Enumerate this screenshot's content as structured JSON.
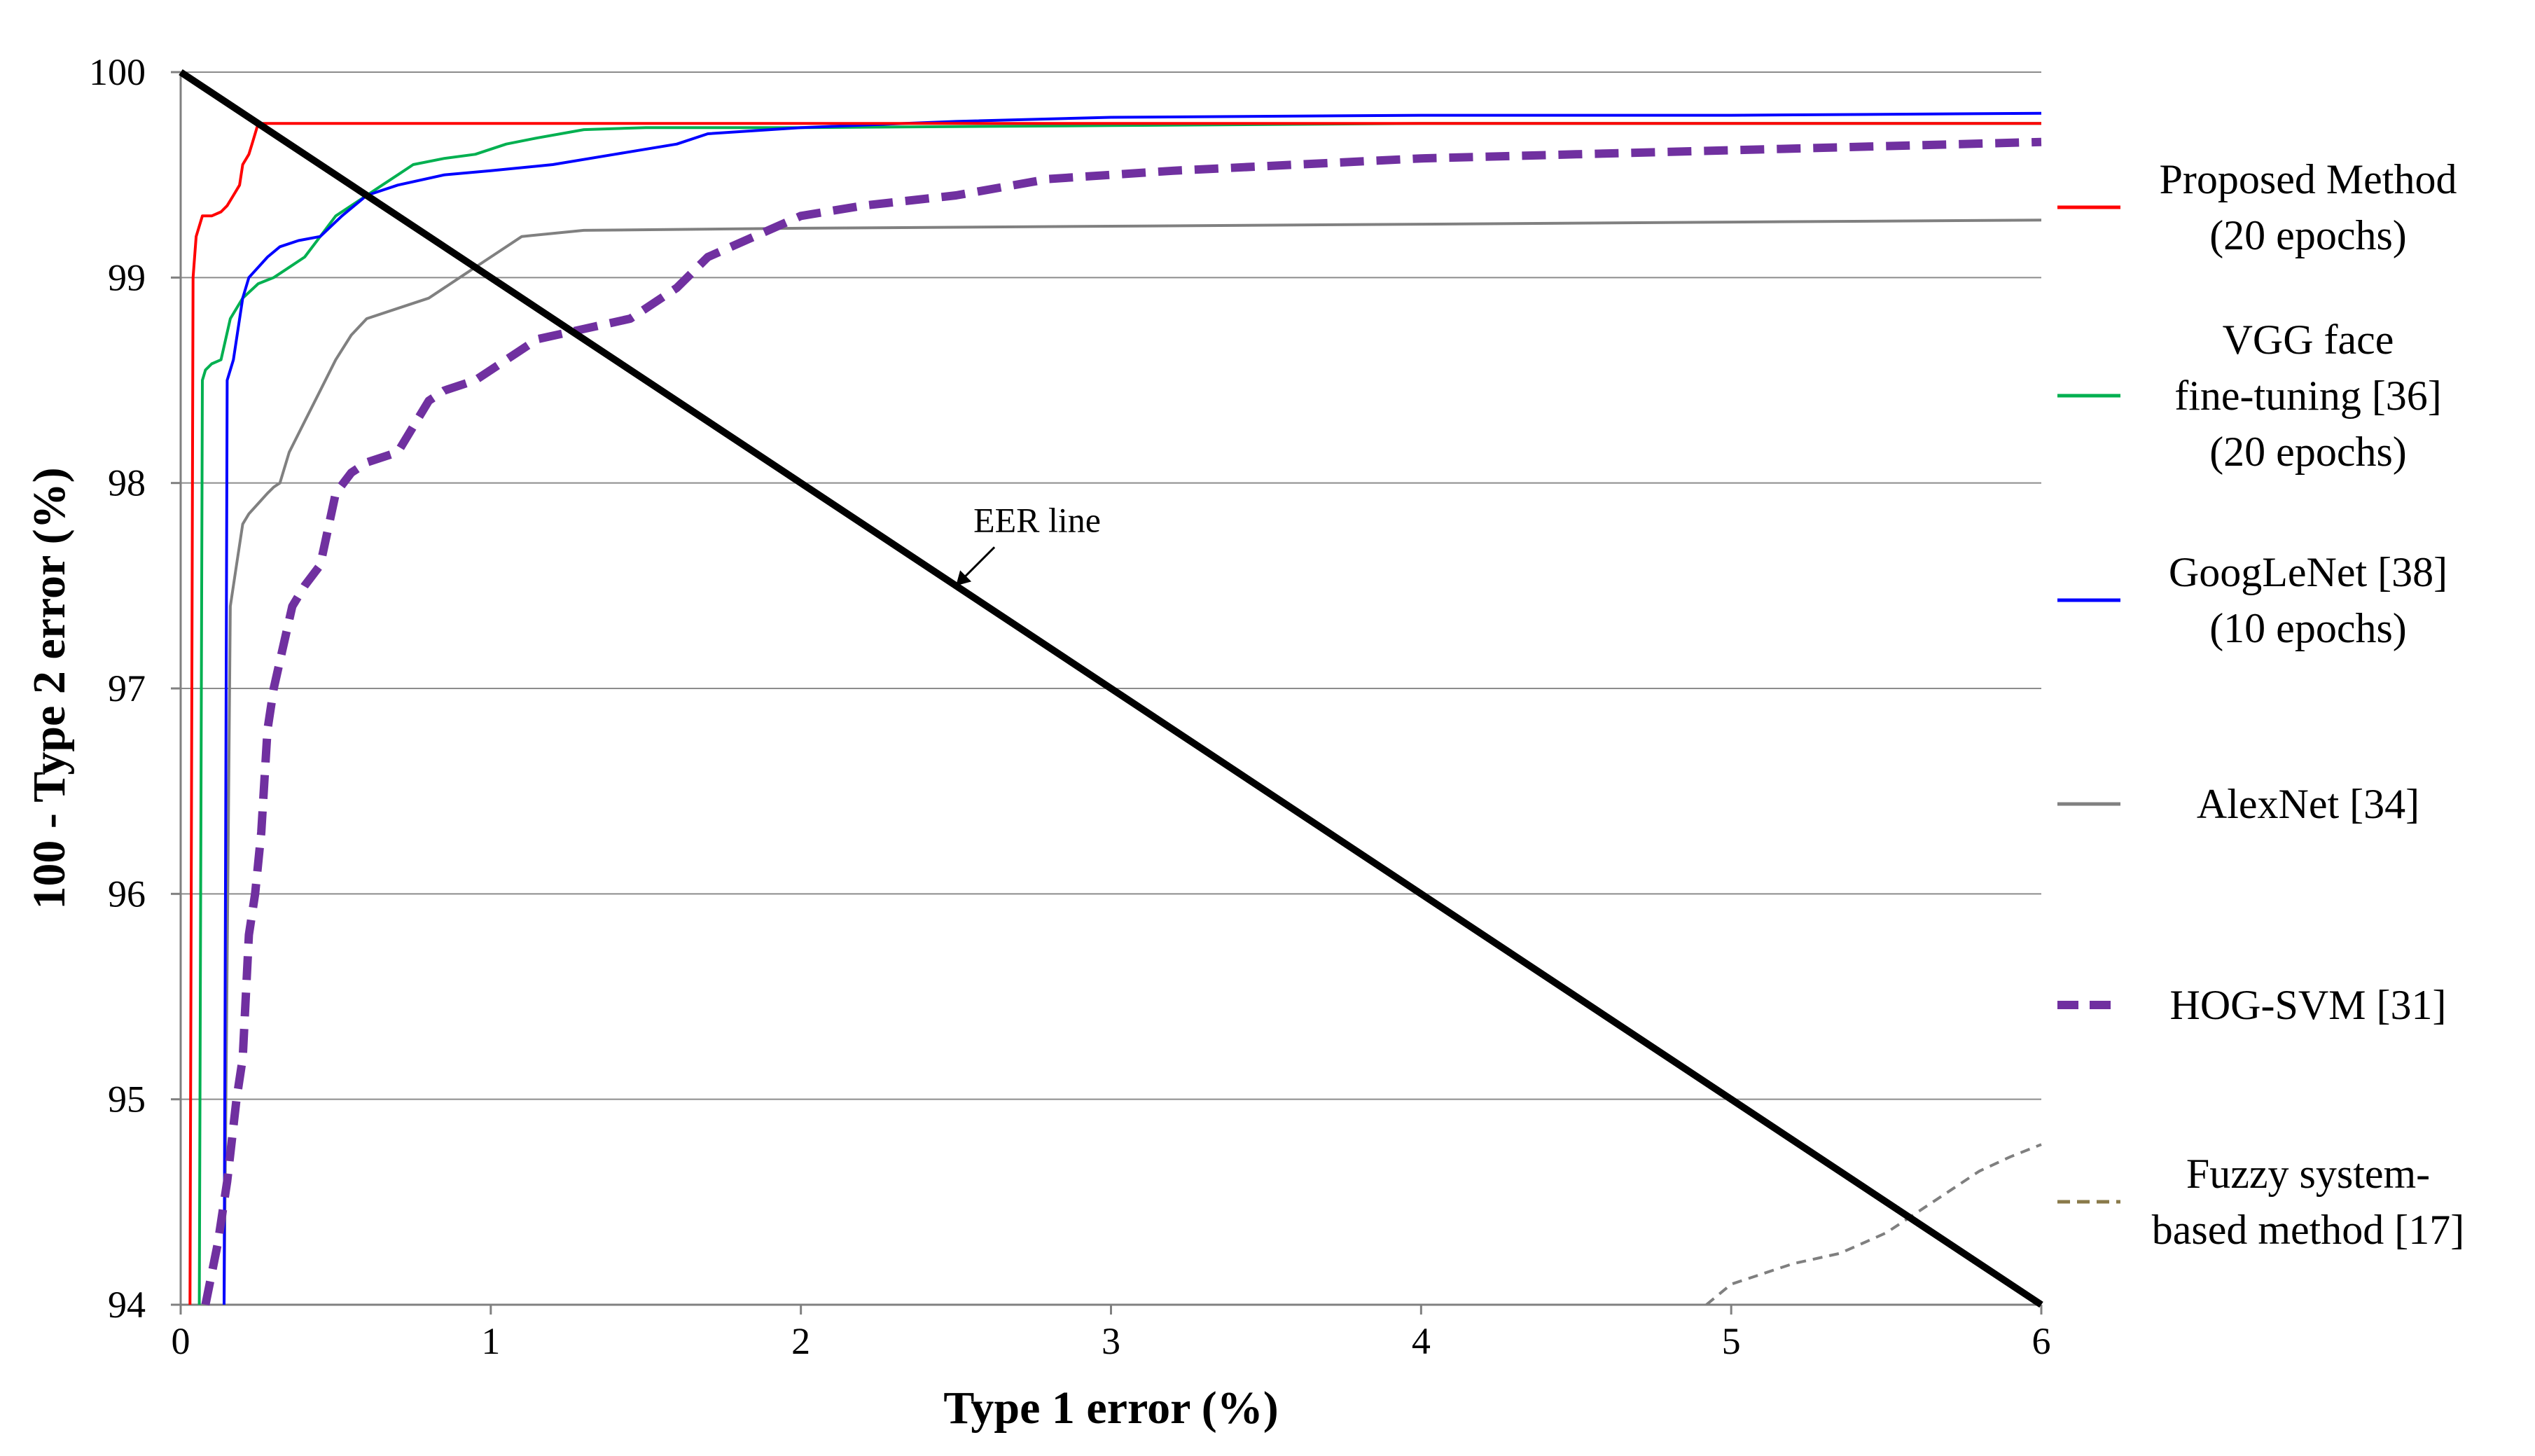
{
  "chart_data": {
    "type": "line",
    "title": "",
    "xlabel": "Type 1 error (%)",
    "ylabel": "100 - Type 2 error (%)",
    "xlim": [
      0,
      6
    ],
    "ylim": [
      94,
      100
    ],
    "x_ticks": [
      "0",
      "1",
      "2",
      "3",
      "4",
      "5",
      "6"
    ],
    "y_ticks": [
      "94",
      "95",
      "96",
      "97",
      "98",
      "99",
      "100"
    ],
    "grid": "horizontal",
    "legend_position": "right",
    "annotation": {
      "text": "EER line",
      "x": 2.5,
      "y": 97.5
    },
    "eer_line": {
      "x": [
        0,
        6
      ],
      "y": [
        100,
        94
      ]
    },
    "series": [
      {
        "name": "Proposed Method",
        "name_line2": "(20 epochs)",
        "color": "#ff0000",
        "style": "solid",
        "x": [
          0.03,
          0.04,
          0.05,
          0.07,
          0.1,
          0.13,
          0.15,
          0.17,
          0.19,
          0.2,
          0.22,
          0.23,
          0.25,
          1.0,
          3.0,
          6.0
        ],
        "y": [
          94.0,
          99.0,
          99.2,
          99.3,
          99.3,
          99.32,
          99.35,
          99.4,
          99.45,
          99.55,
          99.6,
          99.65,
          99.75,
          99.75,
          99.75,
          99.75
        ]
      },
      {
        "name": "VGG face",
        "name_line2": "fine-tuning [36]",
        "name_line3": "(20 epochs)",
        "color": "#00b050",
        "style": "solid",
        "x": [
          0.06,
          0.07,
          0.08,
          0.1,
          0.13,
          0.16,
          0.2,
          0.25,
          0.3,
          0.35,
          0.4,
          0.45,
          0.5,
          0.55,
          0.6,
          0.65,
          0.7,
          0.75,
          0.85,
          0.95,
          1.05,
          1.15,
          1.3,
          1.5,
          2.0,
          3.0,
          4.0,
          5.0,
          6.0
        ],
        "y": [
          94.0,
          98.5,
          98.55,
          98.58,
          98.6,
          98.8,
          98.9,
          98.97,
          99.0,
          99.05,
          99.1,
          99.2,
          99.3,
          99.35,
          99.4,
          99.45,
          99.5,
          99.55,
          99.58,
          99.6,
          99.65,
          99.68,
          99.72,
          99.73,
          99.73,
          99.74,
          99.75,
          99.75,
          99.75
        ]
      },
      {
        "name": "GoogLeNet [38]",
        "name_line2": "(10 epochs)",
        "color": "#0000ff",
        "style": "solid",
        "x": [
          0.14,
          0.15,
          0.17,
          0.2,
          0.22,
          0.25,
          0.28,
          0.32,
          0.38,
          0.45,
          0.52,
          0.6,
          0.7,
          0.85,
          1.0,
          1.2,
          1.4,
          1.6,
          1.7,
          2.0,
          2.5,
          3.0,
          4.0,
          5.0,
          6.0
        ],
        "y": [
          94.0,
          98.5,
          98.6,
          98.9,
          99.0,
          99.05,
          99.1,
          99.15,
          99.18,
          99.2,
          99.3,
          99.4,
          99.45,
          99.5,
          99.52,
          99.55,
          99.6,
          99.65,
          99.7,
          99.73,
          99.76,
          99.78,
          99.79,
          99.79,
          99.8
        ]
      },
      {
        "name": "AlexNet [34]",
        "color": "#808080",
        "style": "solid",
        "x": [
          0.14,
          0.16,
          0.18,
          0.2,
          0.22,
          0.25,
          0.28,
          0.3,
          0.32,
          0.35,
          0.4,
          0.45,
          0.5,
          0.55,
          0.6,
          0.7,
          0.8,
          0.9,
          1.0,
          1.1,
          1.3,
          2.0,
          3.0,
          4.0,
          5.0,
          6.0
        ],
        "y": [
          94.0,
          97.4,
          97.6,
          97.8,
          97.85,
          97.9,
          97.95,
          97.98,
          98.0,
          98.15,
          98.3,
          98.45,
          98.6,
          98.72,
          98.8,
          98.85,
          98.9,
          99.0,
          99.1,
          99.2,
          99.23,
          99.24,
          99.25,
          99.26,
          99.27,
          99.28
        ]
      },
      {
        "name": "HOG-SVM [31]",
        "color": "#7030a0",
        "style": "dashed",
        "x": [
          0.08,
          0.12,
          0.15,
          0.18,
          0.2,
          0.22,
          0.24,
          0.26,
          0.28,
          0.3,
          0.33,
          0.36,
          0.4,
          0.45,
          0.5,
          0.55,
          0.6,
          0.7,
          0.8,
          0.85,
          0.95,
          1.05,
          1.15,
          1.3,
          1.45,
          1.6,
          1.7,
          1.85,
          2.0,
          2.2,
          2.5,
          2.8,
          3.2,
          3.6,
          4.0,
          4.5,
          5.0,
          5.5,
          6.0
        ],
        "y": [
          94.0,
          94.3,
          94.6,
          95.0,
          95.2,
          95.8,
          96.0,
          96.3,
          96.8,
          97.0,
          97.2,
          97.4,
          97.5,
          97.6,
          97.95,
          98.05,
          98.1,
          98.15,
          98.4,
          98.45,
          98.5,
          98.6,
          98.7,
          98.75,
          98.8,
          98.95,
          99.1,
          99.2,
          99.3,
          99.35,
          99.4,
          99.48,
          99.52,
          99.55,
          99.58,
          99.6,
          99.62,
          99.64,
          99.66
        ]
      },
      {
        "name": "Fuzzy system-",
        "name_line2": "based method [17]",
        "color": "#7f7f7f",
        "legend_color": "#8a7a4a",
        "style": "dashed-thin",
        "x": [
          4.92,
          5.0,
          5.1,
          5.2,
          5.35,
          5.5,
          5.6,
          5.7,
          5.8,
          5.9,
          6.0
        ],
        "y": [
          94.0,
          94.1,
          94.15,
          94.2,
          94.25,
          94.35,
          94.45,
          94.55,
          94.65,
          94.72,
          94.78
        ]
      }
    ]
  }
}
